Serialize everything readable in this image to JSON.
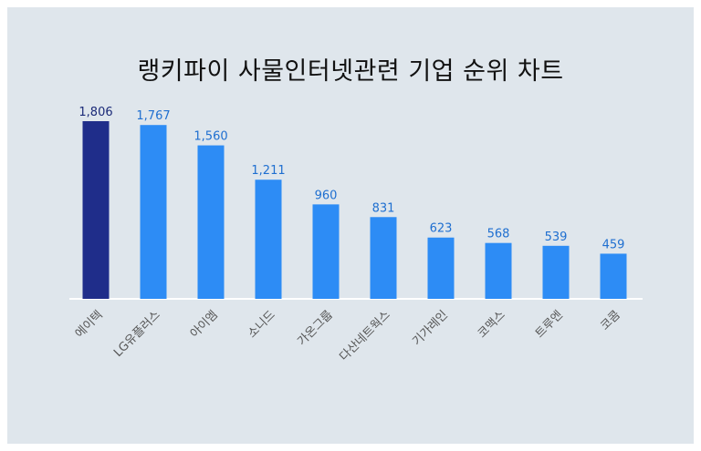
{
  "chart_data": {
    "type": "bar",
    "title": "랭키파이 사물인터넷관련 기업 순위 차트",
    "categories": [
      "에이텍",
      "LG유플러스",
      "아이엠",
      "소니드",
      "가온그룹",
      "다산네트웍스",
      "기가레인",
      "코맥스",
      "트루엔",
      "코콤"
    ],
    "values": [
      1806,
      1767,
      1560,
      1211,
      960,
      831,
      623,
      568,
      539,
      459
    ],
    "value_labels": [
      "1,806",
      "1,767",
      "1,560",
      "1,211",
      "960",
      "831",
      "623",
      "568",
      "539",
      "459"
    ],
    "ylim": [
      0,
      1806
    ],
    "grid": false,
    "legend": "none",
    "colors": {
      "highlight_bar": "#1f2d8a",
      "bar": "#2d8cf5",
      "highlight_label": "#1b2a78",
      "label": "#1f6fd0",
      "baseline": "#ffffff",
      "background": "#dfe6ec"
    }
  }
}
